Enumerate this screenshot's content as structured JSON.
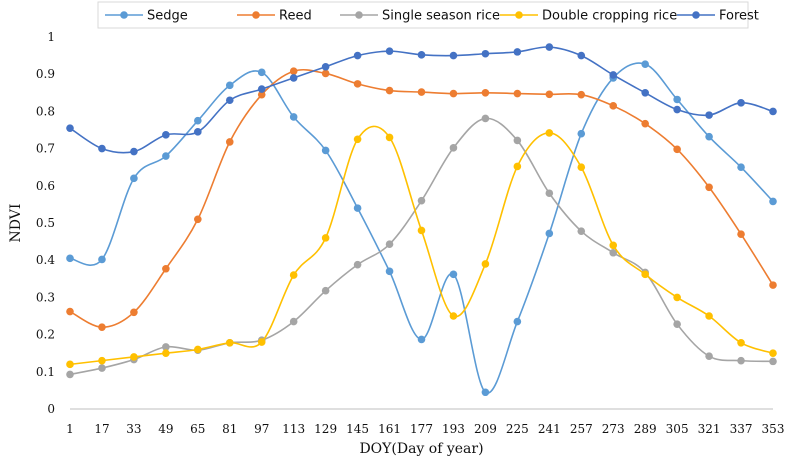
{
  "chart_data": {
    "type": "line",
    "xlabel": "DOY(Day of year)",
    "ylabel": "NDVI",
    "x": [
      1,
      17,
      33,
      49,
      65,
      81,
      97,
      113,
      129,
      145,
      161,
      177,
      193,
      209,
      225,
      241,
      257,
      273,
      289,
      305,
      321,
      337,
      353
    ],
    "ylim": [
      0,
      1
    ],
    "yticks": [
      0,
      0.1,
      0.2,
      0.3,
      0.4,
      0.5,
      0.6,
      0.7,
      0.8,
      0.9,
      1
    ],
    "ytick_labels": [
      "0",
      "0.1",
      "0.2",
      "0.3",
      "0.4",
      "0.5",
      "0.6",
      "0.7",
      "0.8",
      "0.9",
      "1"
    ],
    "xtick_labels": [
      "1",
      "17",
      "33",
      "49",
      "65",
      "81",
      "97",
      "113",
      "129",
      "145",
      "161",
      "177",
      "193",
      "209",
      "225",
      "241",
      "257",
      "273",
      "289",
      "305",
      "321",
      "337",
      "353"
    ],
    "grid": false,
    "legend_position": "top",
    "smooth": true,
    "series": [
      {
        "name": "Sedge",
        "color": "#5B9BD5",
        "values": [
          0.405,
          0.402,
          0.62,
          0.68,
          0.775,
          0.87,
          0.905,
          0.785,
          0.695,
          0.54,
          0.37,
          0.187,
          0.362,
          0.045,
          0.235,
          0.472,
          0.74,
          0.89,
          0.927,
          0.832,
          0.732,
          0.65,
          0.558
        ]
      },
      {
        "name": "Reed",
        "color": "#ED7D31",
        "values": [
          0.262,
          0.22,
          0.26,
          0.377,
          0.51,
          0.718,
          0.845,
          0.908,
          0.902,
          0.874,
          0.856,
          0.852,
          0.848,
          0.85,
          0.848,
          0.846,
          0.845,
          0.815,
          0.767,
          0.698,
          0.596,
          0.47,
          0.333
        ]
      },
      {
        "name": "Single season rice",
        "color": "#A5A5A5",
        "values": [
          0.093,
          0.11,
          0.133,
          0.167,
          0.158,
          0.178,
          0.185,
          0.235,
          0.318,
          0.388,
          0.443,
          0.56,
          0.702,
          0.781,
          0.722,
          0.58,
          0.478,
          0.42,
          0.367,
          0.228,
          0.142,
          0.13,
          0.128
        ]
      },
      {
        "name": "Double cropping rice",
        "color": "#FFC000",
        "values": [
          0.12,
          0.13,
          0.14,
          0.15,
          0.16,
          0.178,
          0.18,
          0.36,
          0.46,
          0.725,
          0.73,
          0.48,
          0.25,
          0.39,
          0.652,
          0.742,
          0.65,
          0.44,
          0.362,
          0.3,
          0.25,
          0.178,
          0.15
        ]
      },
      {
        "name": "Forest",
        "color": "#4472C4",
        "values": [
          0.755,
          0.7,
          0.692,
          0.737,
          0.745,
          0.83,
          0.86,
          0.89,
          0.92,
          0.95,
          0.962,
          0.952,
          0.95,
          0.955,
          0.96,
          0.973,
          0.95,
          0.898,
          0.85,
          0.805,
          0.79,
          0.823,
          0.8
        ]
      }
    ]
  }
}
